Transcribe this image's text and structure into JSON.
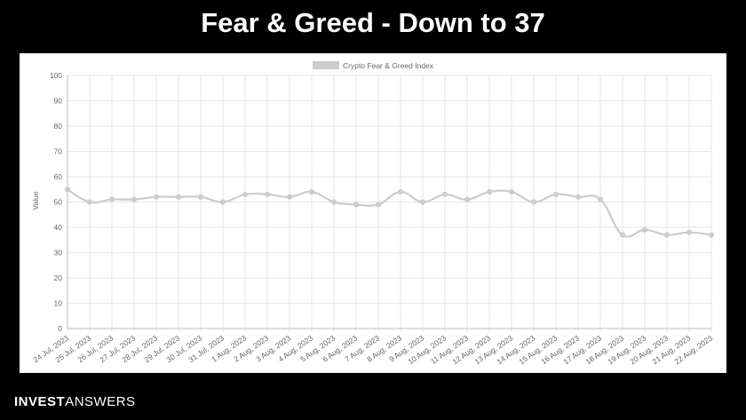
{
  "slide": {
    "title": "Fear & Greed - Down to 37"
  },
  "brand": {
    "part1": "INVEST",
    "part2": "ANSWERS"
  },
  "chart_data": {
    "type": "line",
    "legend_label": "Crypto Fear & Greed Index",
    "legend_position": "top-center",
    "ylabel": "Value",
    "xlabel": "",
    "ylim": [
      0,
      100
    ],
    "yticks": [
      "0",
      "10",
      "20",
      "30",
      "40",
      "50",
      "60",
      "70",
      "80",
      "90",
      "100"
    ],
    "grid": true,
    "series_color": "#cccccc",
    "categories": [
      "24 Jul, 2023",
      "25 Jul, 2023",
      "26 Jul, 2023",
      "27 Jul, 2023",
      "28 Jul, 2023",
      "29 Jul, 2023",
      "30 Jul, 2023",
      "31 Jul, 2023",
      "1 Aug, 2023",
      "2 Aug, 2023",
      "3 Aug, 2023",
      "4 Aug, 2023",
      "5 Aug, 2023",
      "6 Aug, 2023",
      "7 Aug, 2023",
      "8 Aug, 2023",
      "9 Aug, 2023",
      "10 Aug, 2023",
      "11 Aug, 2023",
      "12 Aug, 2023",
      "13 Aug, 2023",
      "14 Aug, 2023",
      "15 Aug, 2023",
      "16 Aug, 2023",
      "17 Aug, 2023",
      "18 Aug, 2023",
      "19 Aug, 2023",
      "20 Aug, 2023",
      "21 Aug, 2023",
      "22 Aug, 2023"
    ],
    "series": [
      {
        "name": "Crypto Fear & Greed Index",
        "values": [
          55,
          50,
          51,
          51,
          52,
          52,
          52,
          50,
          53,
          53,
          52,
          54,
          50,
          49,
          49,
          54,
          50,
          53,
          51,
          54,
          54,
          50,
          53,
          52,
          51,
          37,
          39,
          37,
          38,
          37
        ]
      }
    ]
  }
}
